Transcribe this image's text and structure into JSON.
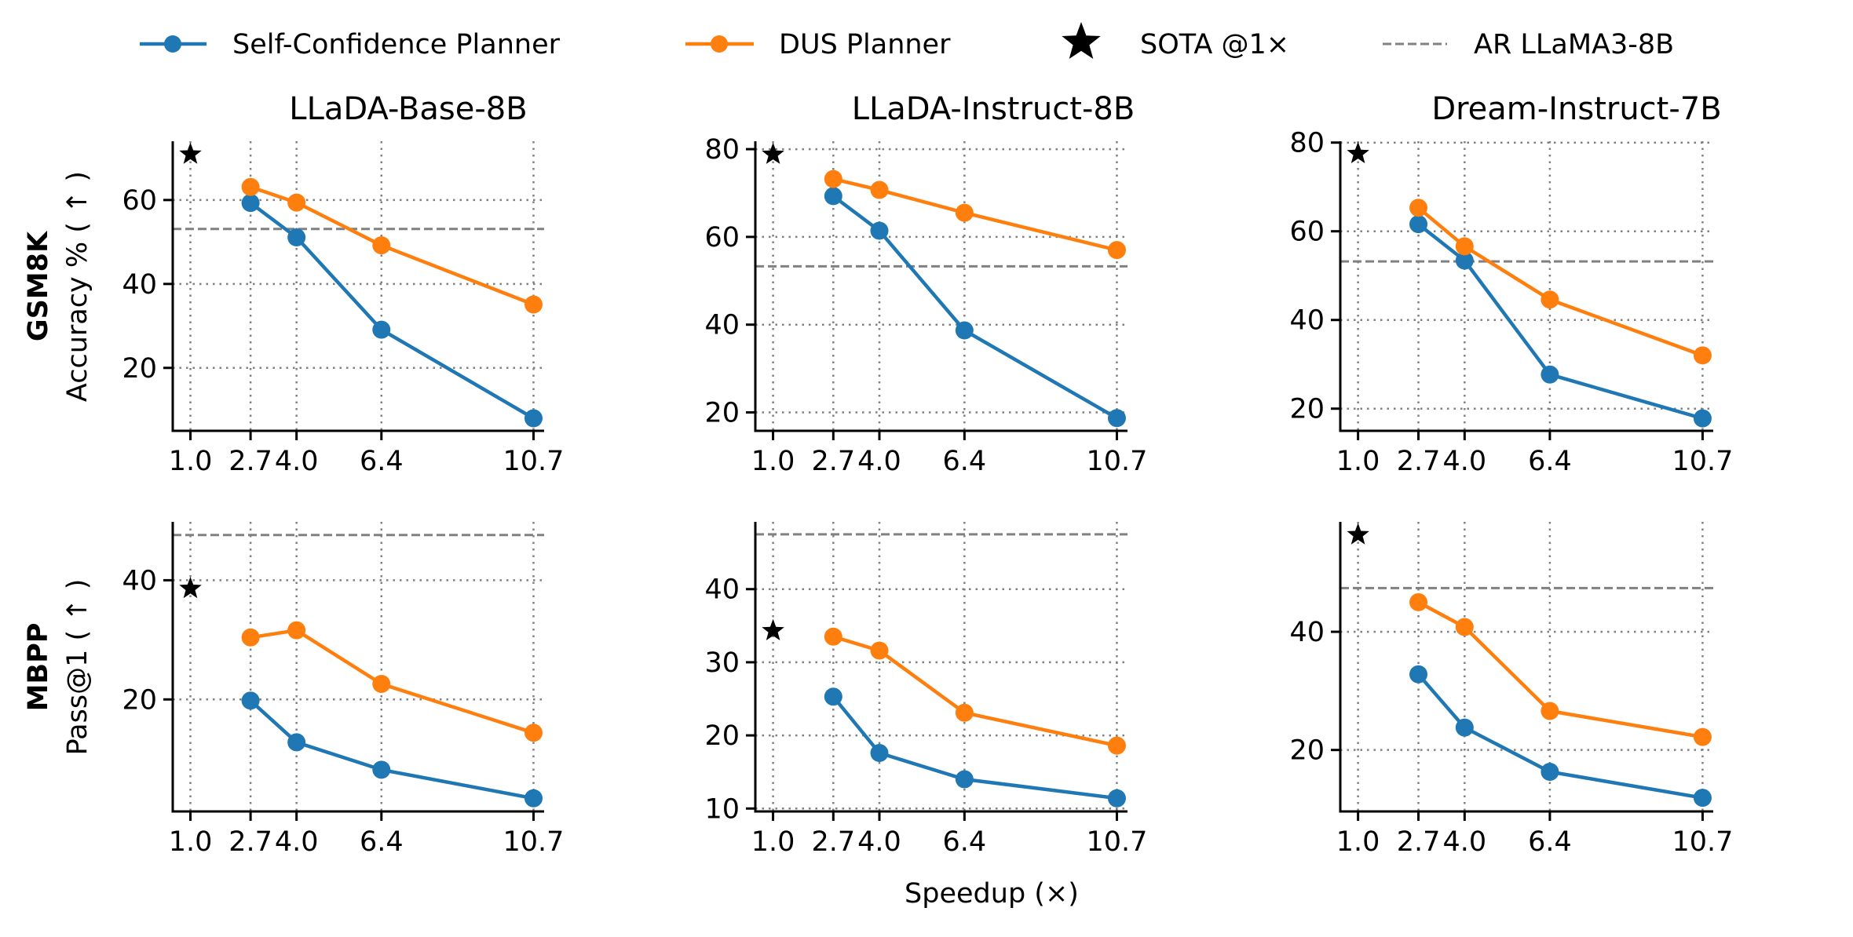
{
  "legend": {
    "items": [
      {
        "label": "Self-Confidence Planner",
        "kind": "line-marker",
        "color": "#1f77b4"
      },
      {
        "label": "DUS Planner",
        "kind": "line-marker",
        "color": "#ff7f0e"
      },
      {
        "label": "SOTA @1×",
        "kind": "star",
        "color": "#000000"
      },
      {
        "label": "AR LLaMA3-8B",
        "kind": "dashed",
        "color": "#808080"
      }
    ],
    "placement": "top-center"
  },
  "columns": [
    "LLaDA-Base-8B",
    "LLaDA-Instruct-8B",
    "Dream-Instruct-7B"
  ],
  "rows": [
    {
      "name": "GSM8K",
      "ylabel": "Accuracy % ( ↑ )"
    },
    {
      "name": "MBPP",
      "ylabel": "Pass@1 ( ↑ )"
    }
  ],
  "xlabel": "Speedup (×)",
  "chart_data": [
    {
      "type": "line",
      "row": "GSM8K",
      "title": "LLaDA-Base-8B",
      "ylabel": "Accuracy % ( ↑ )",
      "x": [
        2.7,
        4.0,
        6.4,
        10.7
      ],
      "xticks": [
        1.0,
        2.7,
        4.0,
        6.4,
        10.7
      ],
      "xlim": [
        0.5,
        11.0
      ],
      "yticks": [
        20,
        40,
        60
      ],
      "ylim": [
        5,
        74
      ],
      "grid": true,
      "series": [
        {
          "name": "Self-Confidence Planner",
          "values": [
            59.3,
            51.1,
            29.1,
            8.0
          ]
        },
        {
          "name": "DUS Planner",
          "values": [
            63.1,
            59.4,
            49.2,
            35.1
          ]
        }
      ],
      "sota": {
        "x": 1.0,
        "y": 70.9
      },
      "ar_baseline": 53.1
    },
    {
      "type": "line",
      "row": "GSM8K",
      "title": "LLaDA-Instruct-8B",
      "x": [
        2.7,
        4.0,
        6.4,
        10.7
      ],
      "xticks": [
        1.0,
        2.7,
        4.0,
        6.4,
        10.7
      ],
      "xlim": [
        0.5,
        11.0
      ],
      "yticks": [
        20,
        40,
        60,
        80
      ],
      "ylim": [
        15.8,
        81.8
      ],
      "grid": true,
      "series": [
        {
          "name": "Self-Confidence Planner",
          "values": [
            69.3,
            61.4,
            38.7,
            18.7
          ]
        },
        {
          "name": "DUS Planner",
          "values": [
            73.2,
            70.7,
            65.5,
            57.0
          ]
        }
      ],
      "sota": {
        "x": 1.0,
        "y": 78.8
      },
      "ar_baseline": 53.3
    },
    {
      "type": "line",
      "row": "GSM8K",
      "title": "Dream-Instruct-7B",
      "x": [
        2.7,
        4.0,
        6.4,
        10.7
      ],
      "xticks": [
        1.0,
        2.7,
        4.0,
        6.4,
        10.7
      ],
      "xlim": [
        0.5,
        11.0
      ],
      "yticks": [
        20,
        40,
        60,
        80
      ],
      "ylim": [
        15.0,
        80.3
      ],
      "grid": true,
      "series": [
        {
          "name": "Self-Confidence Planner",
          "values": [
            61.6,
            53.4,
            27.7,
            17.8
          ]
        },
        {
          "name": "DUS Planner",
          "values": [
            65.3,
            56.6,
            44.6,
            32.0
          ]
        }
      ],
      "sota": {
        "x": 1.0,
        "y": 77.5
      },
      "ar_baseline": 53.2
    },
    {
      "type": "line",
      "row": "MBPP",
      "title": "",
      "ylabel": "Pass@1 ( ↑ )",
      "x": [
        2.7,
        4.0,
        6.4,
        10.7
      ],
      "xticks": [
        1.0,
        2.7,
        4.0,
        6.4,
        10.7
      ],
      "xlim": [
        0.5,
        11.0
      ],
      "yticks": [
        20,
        40
      ],
      "ylim": [
        1.2,
        49.8
      ],
      "grid": true,
      "series": [
        {
          "name": "Self-Confidence Planner",
          "values": [
            19.8,
            12.8,
            8.2,
            3.4
          ]
        },
        {
          "name": "DUS Planner",
          "values": [
            30.4,
            31.6,
            22.6,
            14.4
          ]
        }
      ],
      "sota": {
        "x": 1.0,
        "y": 38.6
      },
      "ar_baseline": 47.6
    },
    {
      "type": "line",
      "row": "MBPP",
      "title": "",
      "xlabel": "Speedup (×)",
      "x": [
        2.7,
        4.0,
        6.4,
        10.7
      ],
      "xticks": [
        1.0,
        2.7,
        4.0,
        6.4,
        10.7
      ],
      "xlim": [
        0.5,
        11.0
      ],
      "yticks": [
        10,
        20,
        30,
        40
      ],
      "ylim": [
        9.6,
        49.2
      ],
      "grid": true,
      "series": [
        {
          "name": "Self-Confidence Planner",
          "values": [
            25.3,
            17.6,
            14.0,
            11.4
          ]
        },
        {
          "name": "DUS Planner",
          "values": [
            33.5,
            31.6,
            23.1,
            18.6
          ]
        }
      ],
      "sota": {
        "x": 1.0,
        "y": 34.3
      },
      "ar_baseline": 47.5
    },
    {
      "type": "line",
      "row": "MBPP",
      "title": "",
      "x": [
        2.7,
        4.0,
        6.4,
        10.7
      ],
      "xticks": [
        1.0,
        2.7,
        4.0,
        6.4,
        10.7
      ],
      "xlim": [
        0.5,
        11.0
      ],
      "yticks": [
        20,
        40
      ],
      "ylim": [
        9.6,
        58.6
      ],
      "grid": true,
      "series": [
        {
          "name": "Self-Confidence Planner",
          "values": [
            32.8,
            23.8,
            16.3,
            11.9
          ]
        },
        {
          "name": "DUS Planner",
          "values": [
            45.0,
            40.8,
            26.6,
            22.2
          ]
        }
      ],
      "sota": {
        "x": 1.0,
        "y": 56.4
      },
      "ar_baseline": 47.4
    }
  ]
}
